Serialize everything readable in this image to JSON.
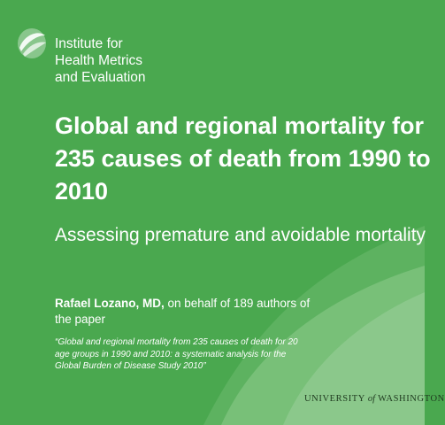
{
  "colors": {
    "background": "#4aa84f",
    "swoosh_light": "#8fc98f",
    "swoosh_mid": "#6dba6f",
    "text": "#ffffff",
    "footer_text": "#1f3a1f"
  },
  "logo": {
    "icon": "ihme-leaf-icon",
    "lines": [
      "Institute for",
      "Health Metrics",
      "and Evaluation"
    ]
  },
  "title": {
    "lines": [
      "Global and regional mortality for",
      "235 causes of death from 1990 to",
      "2010"
    ]
  },
  "subtitle": "Assessing premature and avoidable mortality",
  "author": {
    "name": "Rafael Lozano, MD,",
    "rest": " on behalf of  189 authors of the paper"
  },
  "citation": "“Global and regional mortality from 235 causes of death for 20 age groups in 1990 and 2010: a systematic analysis for the Global Burden of Disease Study 2010”",
  "footer": {
    "university": "UNIVERSITY",
    "of": "of",
    "place": "WASHINGTON"
  }
}
